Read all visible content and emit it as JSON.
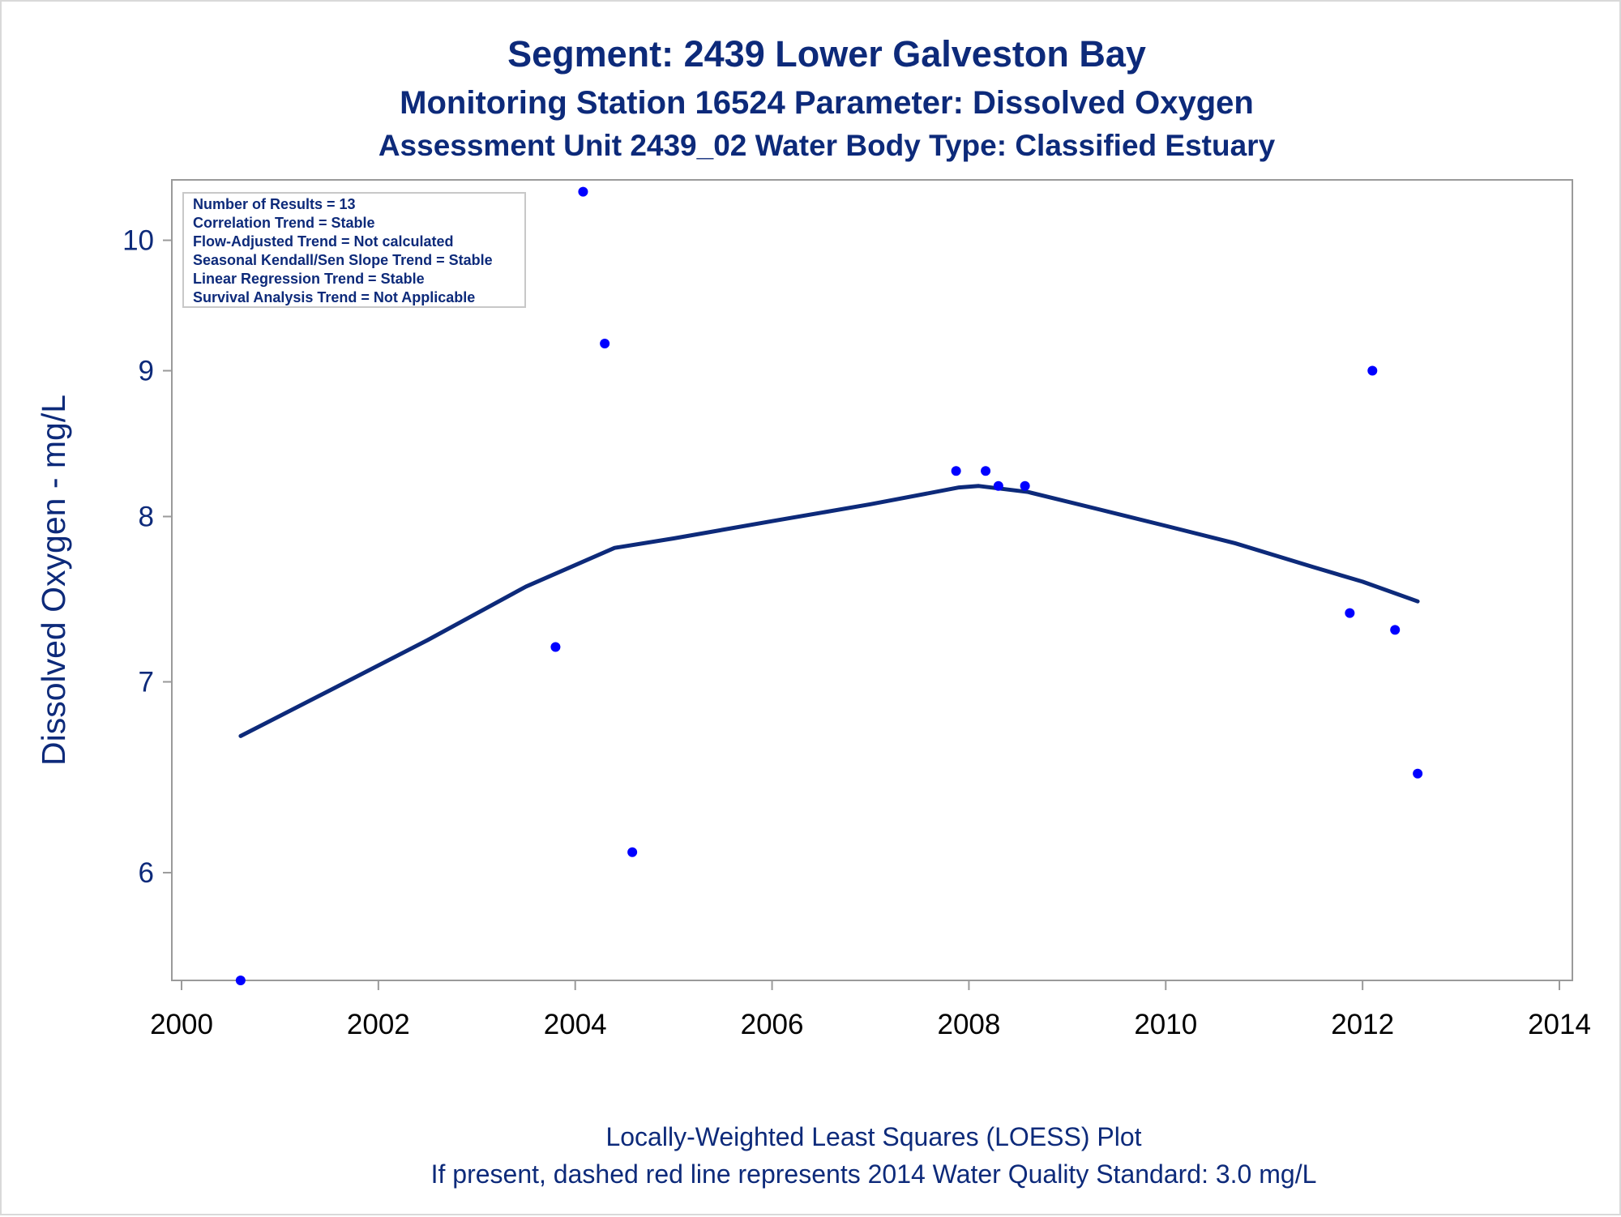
{
  "colors": {
    "title": "#0d2a7a",
    "axis_text": "#0d2a7a",
    "x_tick_text": "#000000",
    "frame": "#9a9a9a",
    "points": "#0000ff",
    "loess": "#0d2a7a"
  },
  "chart_data": {
    "type": "scatter",
    "title": "Segment: 2439  Lower Galveston Bay",
    "subtitle": "Monitoring Station 16524 Parameter: Dissolved Oxygen",
    "subtitle2": "Assessment Unit 2439_02   Water Body Type: Classified Estuary",
    "xlabel": "",
    "ylabel": "Dissolved Oxygen - mg/L",
    "xlim": [
      2000,
      2014
    ],
    "ylim": [
      5.5,
      10.5
    ],
    "y_scale": "log",
    "x_ticks": [
      "2000",
      "2002",
      "2004",
      "2006",
      "2008",
      "2010",
      "2012",
      "2014"
    ],
    "y_ticks": [
      "6",
      "7",
      "8",
      "9",
      "10"
    ],
    "grid": false,
    "legend": "none",
    "stats_box": {
      "position": "top-left",
      "lines": [
        "Number of Results = 13",
        "Correlation Trend = Stable",
        "Flow-Adjusted Trend = Not calculated",
        "Seasonal Kendall/Sen Slope Trend = Stable",
        "Linear Regression Trend = Stable",
        "Survival Analysis Trend = Not Applicable"
      ]
    },
    "points": [
      {
        "x": 2000.6,
        "y": 5.5
      },
      {
        "x": 2003.8,
        "y": 7.2
      },
      {
        "x": 2004.08,
        "y": 10.4
      },
      {
        "x": 2004.3,
        "y": 9.2
      },
      {
        "x": 2004.58,
        "y": 6.1
      },
      {
        "x": 2007.87,
        "y": 8.3
      },
      {
        "x": 2008.17,
        "y": 8.3
      },
      {
        "x": 2008.3,
        "y": 8.2
      },
      {
        "x": 2008.57,
        "y": 8.2
      },
      {
        "x": 2011.87,
        "y": 7.4
      },
      {
        "x": 2012.1,
        "y": 9.0
      },
      {
        "x": 2012.33,
        "y": 7.3
      },
      {
        "x": 2012.56,
        "y": 6.5
      }
    ],
    "loess_line": [
      {
        "x": 2000.6,
        "y": 6.7
      },
      {
        "x": 2001.5,
        "y": 6.95
      },
      {
        "x": 2002.5,
        "y": 7.24
      },
      {
        "x": 2003.5,
        "y": 7.56
      },
      {
        "x": 2004.4,
        "y": 7.8
      },
      {
        "x": 2005.0,
        "y": 7.86
      },
      {
        "x": 2006.0,
        "y": 7.97
      },
      {
        "x": 2007.0,
        "y": 8.08
      },
      {
        "x": 2007.9,
        "y": 8.19
      },
      {
        "x": 2008.1,
        "y": 8.2
      },
      {
        "x": 2008.6,
        "y": 8.16
      },
      {
        "x": 2009.3,
        "y": 8.05
      },
      {
        "x": 2010.0,
        "y": 7.94
      },
      {
        "x": 2010.7,
        "y": 7.83
      },
      {
        "x": 2011.5,
        "y": 7.68
      },
      {
        "x": 2012.0,
        "y": 7.59
      },
      {
        "x": 2012.56,
        "y": 7.47
      }
    ],
    "footnote1": "Locally-Weighted Least Squares (LOESS) Plot",
    "footnote2": "If present, dashed red line represents 2014 Water Quality Standard: 3.0 mg/L"
  }
}
